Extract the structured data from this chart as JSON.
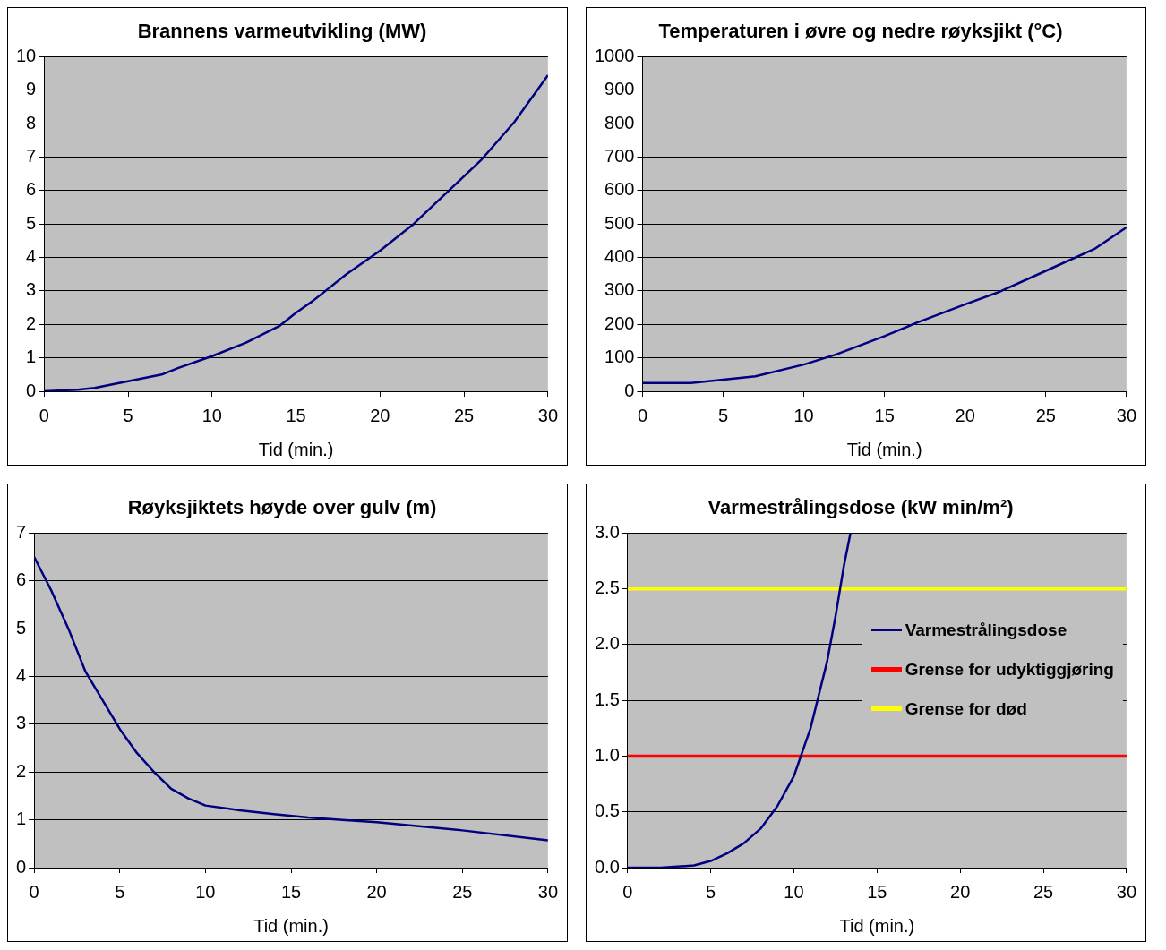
{
  "chart_data": [
    {
      "type": "line",
      "title": "Brannens varmeutvikling (MW)",
      "xlabel": "Tid (min.)",
      "xlim": [
        0,
        30
      ],
      "xticks": [
        0,
        5,
        10,
        15,
        20,
        25,
        30
      ],
      "ylim": [
        0,
        10
      ],
      "yticks": [
        0,
        1,
        2,
        3,
        4,
        5,
        6,
        7,
        8,
        9,
        10
      ],
      "grid": "y",
      "x": [
        0,
        2,
        3,
        5,
        7,
        8,
        10,
        12,
        14,
        15,
        16,
        18,
        20,
        22,
        24,
        26,
        28,
        30
      ],
      "series": [
        {
          "color": "#000080",
          "values": [
            0,
            0.05,
            0.1,
            0.3,
            0.5,
            0.7,
            1.05,
            1.45,
            1.95,
            2.35,
            2.7,
            3.5,
            4.2,
            5.0,
            5.95,
            6.9,
            8.05,
            9.45
          ]
        }
      ]
    },
    {
      "type": "line",
      "title": "Temperaturen i øvre og nedre røyksjikt (°C)",
      "xlabel": "Tid (min.)",
      "xlim": [
        0,
        30
      ],
      "xticks": [
        0,
        5,
        10,
        15,
        20,
        25,
        30
      ],
      "ylim": [
        0,
        1000
      ],
      "yticks": [
        0,
        100,
        200,
        300,
        400,
        500,
        600,
        700,
        800,
        900,
        1000
      ],
      "grid": "y",
      "x": [
        0,
        3,
        5,
        7,
        10,
        12,
        15,
        17,
        20,
        22,
        25,
        28,
        30
      ],
      "series": [
        {
          "color": "#000080",
          "values": [
            25,
            25,
            35,
            45,
            80,
            110,
            165,
            205,
            260,
            295,
            360,
            425,
            490
          ]
        }
      ]
    },
    {
      "type": "line",
      "title": "Røyksjiktets høyde over gulv (m)",
      "xlabel": "Tid (min.)",
      "xlim": [
        0,
        30
      ],
      "xticks": [
        0,
        5,
        10,
        15,
        20,
        25,
        30
      ],
      "ylim": [
        0,
        7
      ],
      "yticks": [
        0,
        1,
        2,
        3,
        4,
        5,
        6,
        7
      ],
      "grid": "y",
      "x": [
        0,
        1,
        2,
        3,
        4,
        5,
        6,
        7,
        8,
        9,
        10,
        12,
        14,
        16,
        18,
        20,
        25,
        30
      ],
      "series": [
        {
          "color": "#000080",
          "values": [
            6.5,
            5.8,
            5.0,
            4.1,
            3.5,
            2.9,
            2.4,
            2.0,
            1.65,
            1.45,
            1.3,
            1.2,
            1.12,
            1.05,
            1.0,
            0.95,
            0.78,
            0.57
          ]
        }
      ]
    },
    {
      "type": "line",
      "title": "Varmestrålingsdose (kW min/m²)",
      "xlabel": "Tid (min.)",
      "xlim": [
        0,
        30
      ],
      "xticks": [
        0,
        5,
        10,
        15,
        20,
        25,
        30
      ],
      "ylim": [
        0,
        3
      ],
      "yticks": [
        {
          "value": 0,
          "label": "0.0"
        },
        {
          "value": 0.5,
          "label": "0.5"
        },
        {
          "value": 1,
          "label": "1.0"
        },
        {
          "value": 1.5,
          "label": "1.5"
        },
        {
          "value": 2,
          "label": "2.0"
        },
        {
          "value": 2.5,
          "label": "2.5"
        },
        {
          "value": 3,
          "label": "3.0"
        }
      ],
      "grid": "y",
      "legend": "right",
      "series": [
        {
          "name": "Varmestrålingsdose",
          "color": "#000080",
          "x": [
            0,
            2,
            3,
            4,
            5,
            6,
            7,
            8,
            9,
            10,
            11,
            12,
            12.5,
            13,
            13.4
          ],
          "values": [
            0,
            0,
            0.01,
            0.02,
            0.06,
            0.13,
            0.22,
            0.35,
            0.55,
            0.82,
            1.25,
            1.85,
            2.25,
            2.7,
            3.0
          ]
        },
        {
          "name": "Grense for udyktiggjøring",
          "color": "#ff0000",
          "x": [
            0,
            30
          ],
          "values": [
            1,
            1
          ]
        },
        {
          "name": "Grense for død",
          "color": "#ffff00",
          "x": [
            0,
            30
          ],
          "values": [
            2.5,
            2.5
          ]
        }
      ]
    }
  ]
}
